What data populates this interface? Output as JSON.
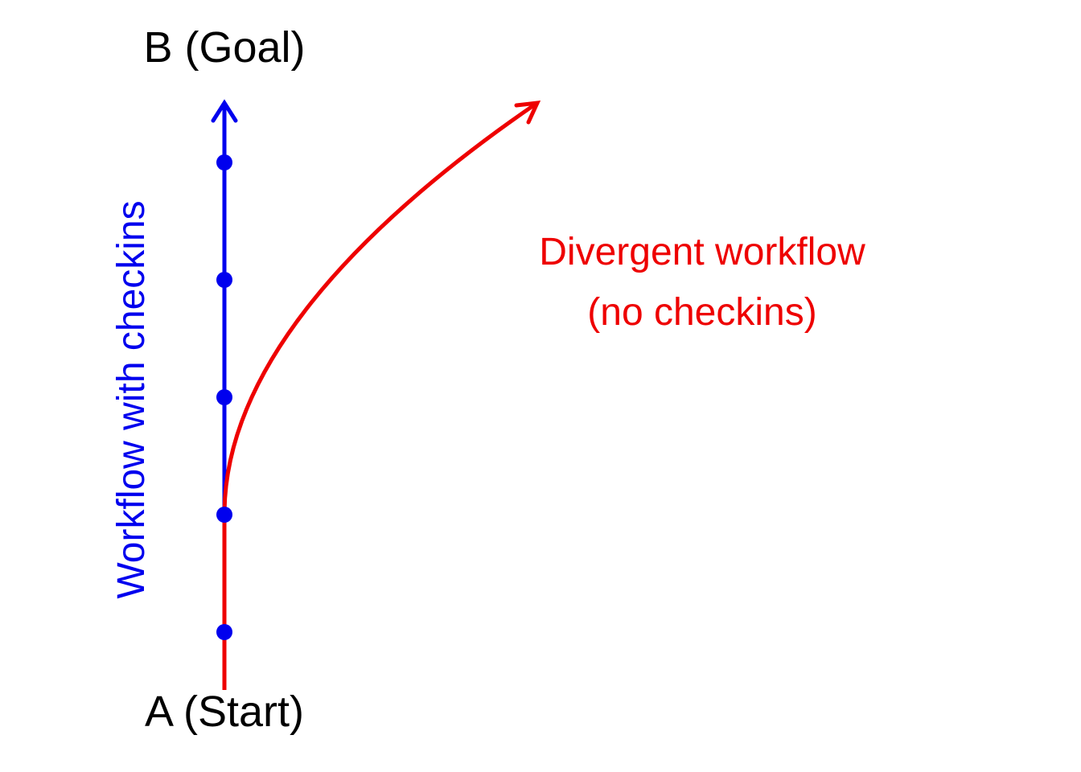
{
  "labels": {
    "goal": "B (Goal)",
    "start": "A (Start)",
    "checkin_path": "Workflow with checkins",
    "divergent_line1": "Divergent workflow",
    "divergent_line2": "(no checkins)"
  },
  "colors": {
    "checkin_path": "#0000ee",
    "divergent_path": "#ee0000",
    "text": "#000000",
    "background": "#ffffff"
  }
}
